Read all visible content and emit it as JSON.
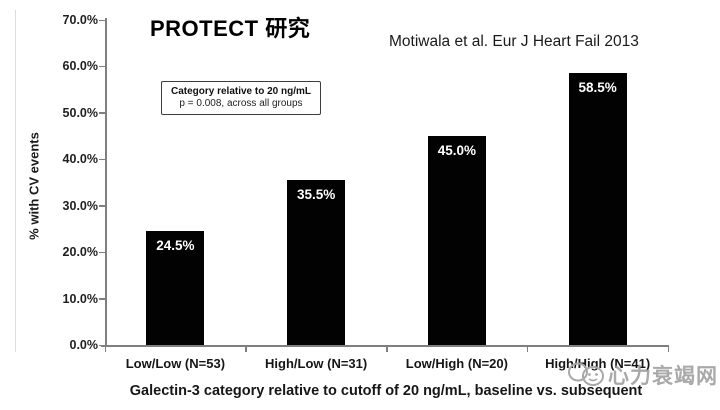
{
  "header": {
    "title": "PROTECT 研究",
    "citation": "Motiwala et al. Eur J Heart Fail 2013"
  },
  "chart_data": {
    "type": "bar",
    "title": "PROTECT 研究",
    "categories": [
      "Low/Low (N=53)",
      "High/Low (N=31)",
      "Low/High (N=20)",
      "High/High (N=41)"
    ],
    "values": [
      24.5,
      35.5,
      45.0,
      58.5
    ],
    "value_labels": [
      "24.5%",
      "35.5%",
      "45.0%",
      "58.5%"
    ],
    "xlabel": "Galectin-3 category relative to cutoff of 20 ng/mL, baseline vs. subsequent",
    "ylabel": "% with CV events",
    "ylim": [
      0,
      70
    ],
    "ytick_step": 10,
    "ytick_labels": [
      "0.0%",
      "10.0%",
      "20.0%",
      "30.0%",
      "40.0%",
      "50.0%",
      "60.0%",
      "70.0%"
    ],
    "bar_color": "#020202",
    "grid": false,
    "legend": null,
    "annotation": {
      "line1": "Category relative to 20 ng/mL",
      "line2": "p = 0.008, across all groups"
    }
  },
  "watermark": {
    "text": "心力衰竭网"
  }
}
